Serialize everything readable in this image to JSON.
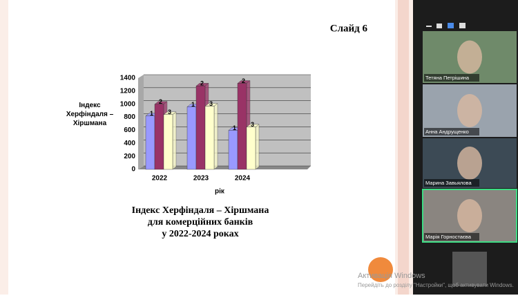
{
  "slide": {
    "number_label": "Слайд 6",
    "caption": [
      "Індекс Херфіндаля – Хіршмана",
      "для комерційних банків",
      "у 2022-2024 роках"
    ]
  },
  "chart_data": {
    "type": "bar",
    "y_label": "Індекс Херфіндаля – Хіршмана",
    "x_label": "рік",
    "categories": [
      "2022",
      "2023",
      "2024"
    ],
    "series": [
      {
        "name": "1",
        "color": "#9999ff",
        "values": [
          820,
          960,
          600
        ]
      },
      {
        "name": "2",
        "color": "#993366",
        "values": [
          1000,
          1280,
          1320
        ]
      },
      {
        "name": "3",
        "color": "#ffffcc",
        "values": [
          840,
          970,
          650
        ]
      }
    ],
    "ylim": [
      0,
      1400
    ],
    "yticks": [
      0,
      200,
      400,
      600,
      800,
      1000,
      1200,
      1400
    ],
    "grid": true
  },
  "participants": [
    "Тетяна Петрішина",
    "Анна Андрущенко",
    "Марина Завьялова",
    "Марія Горностаєва"
  ],
  "watermark": {
    "title": "Активація Windows",
    "text": "Перейдіть до розділу \"Настройки\", щоб активувати Windows."
  }
}
